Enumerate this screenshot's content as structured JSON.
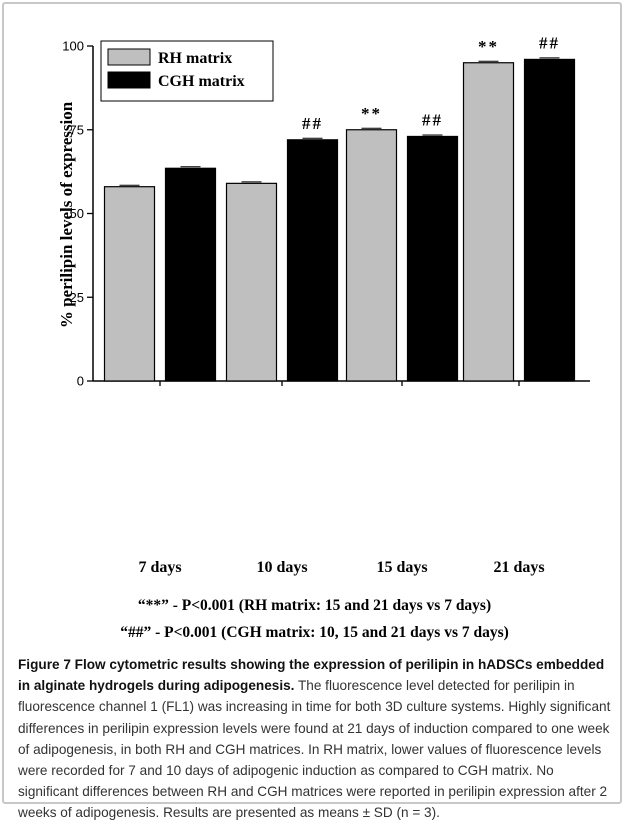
{
  "chart_data": {
    "type": "bar",
    "ylabel": "% perilipin levels of expression",
    "ylim": [
      0,
      100
    ],
    "yticks": [
      0,
      25,
      50,
      75,
      100
    ],
    "categories": [
      "7 days",
      "10 days",
      "15 days",
      "21 days"
    ],
    "series": [
      {
        "name": "RH matrix",
        "color": "#bfbfbf",
        "values": [
          58,
          59,
          75,
          95
        ],
        "annotations": [
          "",
          "",
          "**",
          "**"
        ]
      },
      {
        "name": "CGH matrix",
        "color": "#000000",
        "values": [
          63.5,
          72,
          73,
          96
        ],
        "annotations": [
          "",
          "##",
          "##",
          "##"
        ]
      }
    ],
    "legend_position": "top-left",
    "grid": false
  },
  "notes": [
    "“**” - P<0.001 (RH matrix: 15 and 21 days vs 7 days)",
    "“##” - P<0.001 (CGH matrix: 10, 15 and 21 days vs 7 days)"
  ],
  "caption": {
    "title": "Figure 7 Flow cytometric results showing the expression of perilipin in hADSCs embedded in alginate hydrogels during adipogenesis.",
    "body": " The fluorescence level detected for perilipin in fluorescence channel 1 (FL1) was increasing in time for both 3D culture systems. Highly significant differences in perilipin expression levels were found at 21 days of induction compared to one week of adipogenesis, in both RH and CGH matrices. In RH matrix, lower values of fluorescence levels were recorded for 7 and 10 days of adipogenic induction as compared to CGH matrix. No significant differences between RH and CGH matrices were reported in perilipin expression after 2 weeks of adipogenesis. Results are presented as means ± SD (n = 3)."
  }
}
